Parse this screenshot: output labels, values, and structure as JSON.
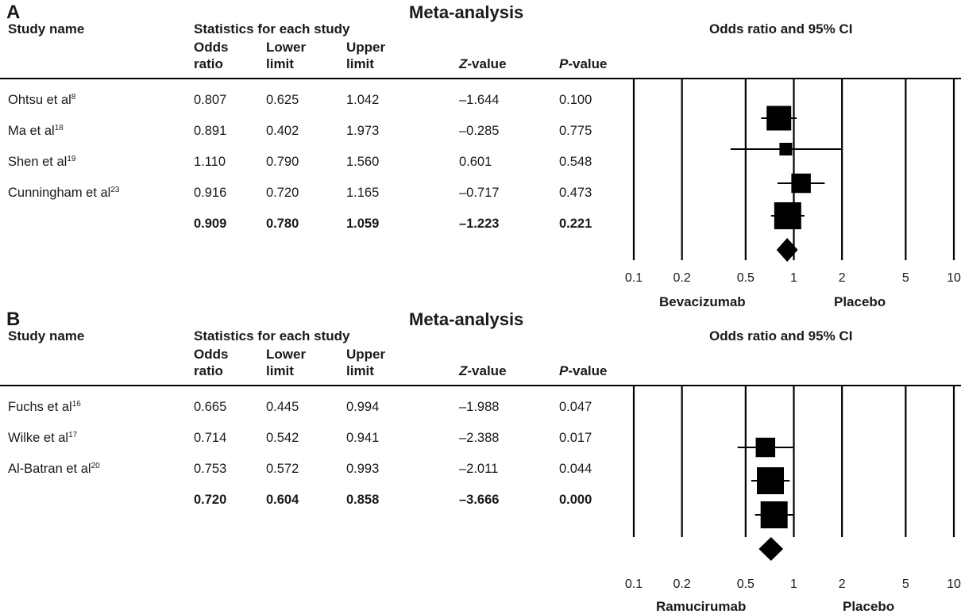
{
  "columns": {
    "study": "Study name",
    "stats_group": "Statistics for each study",
    "or_1": "Odds",
    "or_2": "ratio",
    "lo_1": "Lower",
    "lo_2": "limit",
    "up_1": "Upper",
    "up_2": "limit",
    "z_it": "Z",
    "z_rest": "-value",
    "p_it": "P",
    "p_rest": "-value",
    "plot_title": "Odds ratio and 95% CI"
  },
  "chart_data": [
    {
      "type": "table",
      "panel": "A",
      "title": "Meta-analysis",
      "xscale": "log",
      "xlim": [
        0.1,
        10
      ],
      "ticks": [
        "0.1",
        "0.2",
        "0.5",
        "1",
        "2",
        "5",
        "10"
      ],
      "tick_values": [
        0.1,
        0.2,
        0.5,
        1,
        2,
        5,
        10
      ],
      "left_label": "Bevacizumab",
      "right_label": "Placebo",
      "studies": [
        {
          "name": "Ohtsu et al",
          "ref": "8",
          "or": "0.807",
          "lower": "0.625",
          "upper": "1.042",
          "z": "–1.644",
          "p": "0.100",
          "or_v": 0.807,
          "lower_v": 0.625,
          "upper_v": 1.042,
          "weight": 0.88
        },
        {
          "name": "Ma et al",
          "ref": "18",
          "or": "0.891",
          "lower": "0.402",
          "upper": "1.973",
          "z": "–0.285",
          "p": "0.775",
          "or_v": 0.891,
          "lower_v": 0.402,
          "upper_v": 1.973,
          "weight": 0.28
        },
        {
          "name": "Shen et al",
          "ref": "19",
          "or": "1.110",
          "lower": "0.790",
          "upper": "1.560",
          "z": "0.601",
          "p": "0.548",
          "or_v": 1.11,
          "lower_v": 0.79,
          "upper_v": 1.56,
          "weight": 0.62
        },
        {
          "name": "Cunningham et al",
          "ref": "23",
          "or": "0.916",
          "lower": "0.720",
          "upper": "1.165",
          "z": "–0.717",
          "p": "0.473",
          "or_v": 0.916,
          "lower_v": 0.72,
          "upper_v": 1.165,
          "weight": 1.0
        }
      ],
      "summary": {
        "or": "0.909",
        "lower": "0.780",
        "upper": "1.059",
        "z": "–1.223",
        "p": "0.221",
        "or_v": 0.909,
        "lower_v": 0.78,
        "upper_v": 1.059
      }
    },
    {
      "type": "table",
      "panel": "B",
      "title": "Meta-analysis",
      "xscale": "log",
      "xlim": [
        0.1,
        10
      ],
      "ticks": [
        "0.1",
        "0.2",
        "0.5",
        "1",
        "2",
        "5",
        "10"
      ],
      "tick_values": [
        0.1,
        0.2,
        0.5,
        1,
        2,
        5,
        10
      ],
      "left_label": "Ramucirumab",
      "right_label": "Placebo",
      "studies": [
        {
          "name": "Fuchs et al",
          "ref": "16",
          "or": "0.665",
          "lower": "0.445",
          "upper": "0.994",
          "z": "–1.988",
          "p": "0.047",
          "or_v": 0.665,
          "lower_v": 0.445,
          "upper_v": 0.994,
          "weight": 0.62
        },
        {
          "name": "Wilke et al",
          "ref": "17",
          "or": "0.714",
          "lower": "0.542",
          "upper": "0.941",
          "z": "–2.388",
          "p": "0.017",
          "or_v": 0.714,
          "lower_v": 0.542,
          "upper_v": 0.941,
          "weight": 1.0
        },
        {
          "name": "Al-Batran et al",
          "ref": "20",
          "or": "0.753",
          "lower": "0.572",
          "upper": "0.993",
          "z": "–2.011",
          "p": "0.044",
          "or_v": 0.753,
          "lower_v": 0.572,
          "upper_v": 0.993,
          "weight": 1.0
        }
      ],
      "summary": {
        "or": "0.720",
        "lower": "0.604",
        "upper": "0.858",
        "z": "–3.666",
        "p": "0.000",
        "or_v": 0.72,
        "lower_v": 0.604,
        "upper_v": 0.858
      }
    }
  ]
}
